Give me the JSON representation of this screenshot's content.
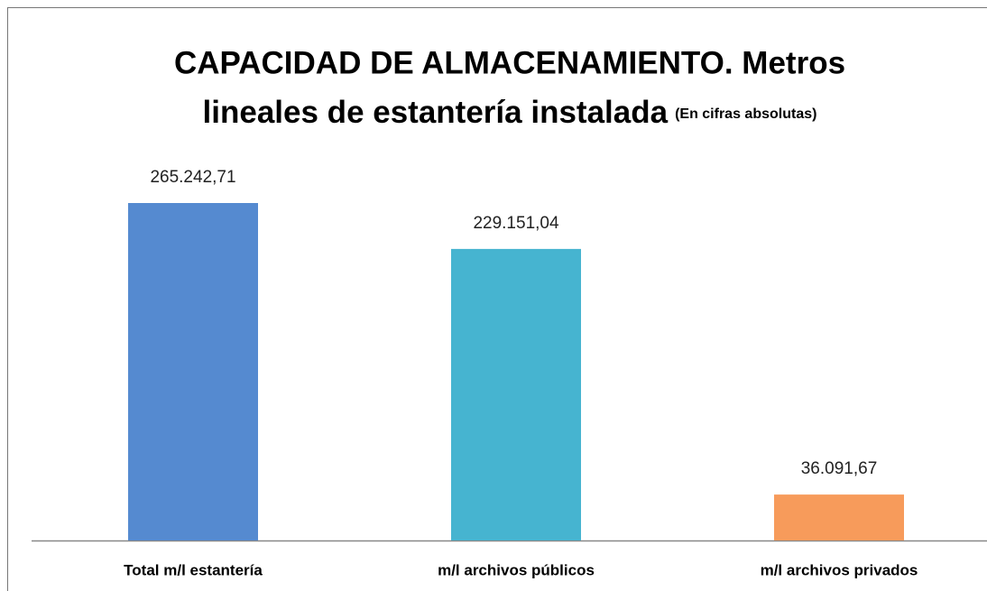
{
  "chart_data": {
    "type": "bar",
    "title": [
      "CAPACIDAD DE ALMACENAMIENTO. Metros",
      "lineales de estantería instalada"
    ],
    "subtitle": "(En cifras absolutas)",
    "categories": [
      "Total m/l estantería",
      "m/l archivos públicos",
      "m/l archivos privados"
    ],
    "values": [
      265242.71,
      229151.04,
      36091.67
    ],
    "value_labels": [
      "265.242,71",
      "229.151,04",
      "36.091,67"
    ],
    "colors": [
      "#558ad0",
      "#46b4d0",
      "#f79b5b"
    ]
  }
}
